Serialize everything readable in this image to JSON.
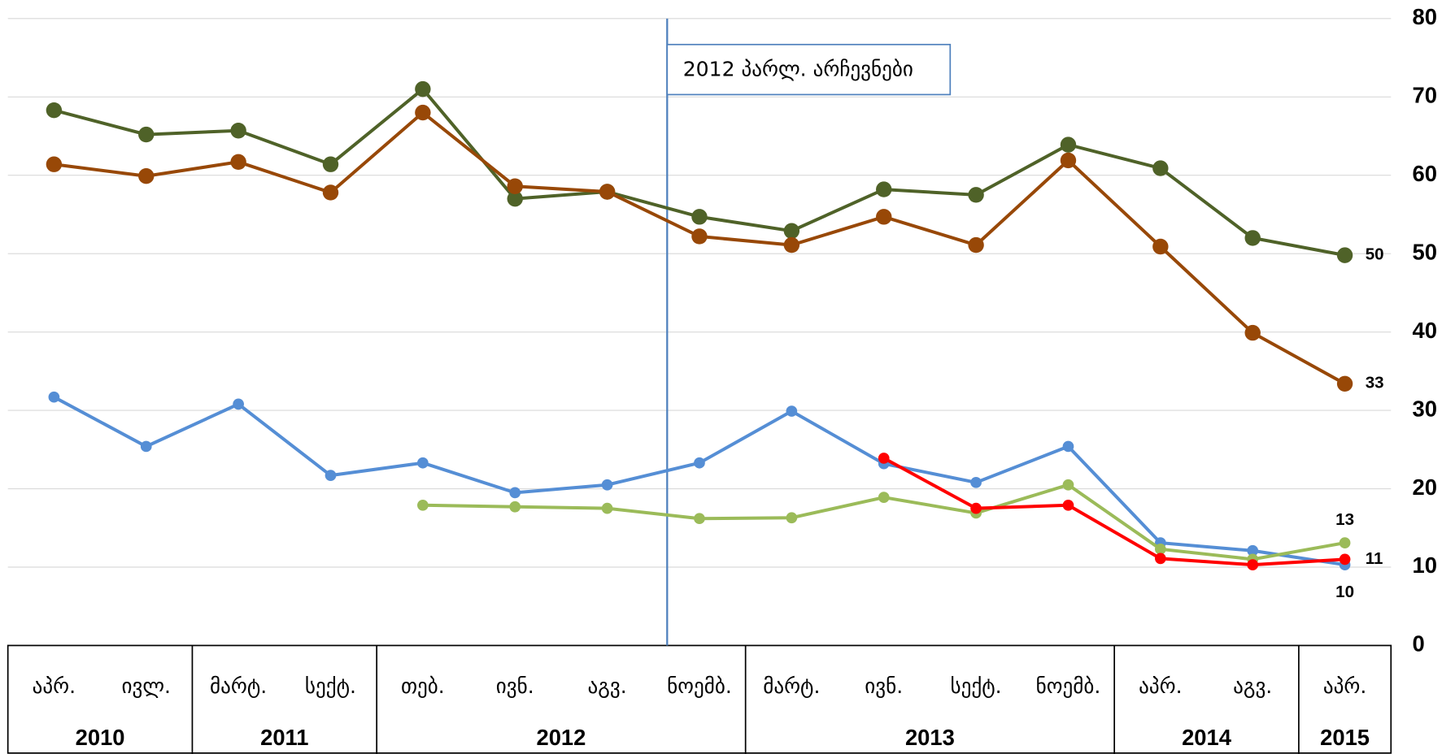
{
  "chart_data": {
    "type": "line",
    "annotation": "2012 პარლ. არჩევნები",
    "categories": [
      "აპრ.",
      "ივლ.",
      "მარტ.",
      "სექტ.",
      "თებ.",
      "ივნ.",
      "აგვ.",
      "ნოემბ.",
      "მარტ.",
      "ივნ.",
      "სექტ.",
      "ნოემბ.",
      "აპრ.",
      "აგვ.",
      "აპრ."
    ],
    "year_groups": [
      {
        "label": "2010",
        "count": 2
      },
      {
        "label": "2011",
        "count": 2
      },
      {
        "label": "2012",
        "count": 4
      },
      {
        "label": "2013",
        "count": 4
      },
      {
        "label": "2014",
        "count": 2
      },
      {
        "label": "2015",
        "count": 1
      }
    ],
    "series": [
      {
        "color": "#4f6228",
        "marker": "large",
        "values": [
          68.3,
          65.2,
          65.7,
          61.4,
          71.0,
          57.0,
          57.9,
          54.7,
          52.9,
          58.2,
          57.5,
          63.9,
          60.9,
          52.0,
          49.8
        ],
        "value_labels": [
          null,
          null,
          null,
          null,
          null,
          null,
          null,
          null,
          null,
          null,
          null,
          null,
          null,
          null,
          "50"
        ]
      },
      {
        "color": "#984807",
        "marker": "large",
        "values": [
          61.4,
          59.9,
          61.7,
          57.8,
          68.0,
          58.6,
          57.9,
          52.2,
          51.1,
          54.7,
          51.1,
          61.9,
          50.9,
          39.9,
          33.4
        ],
        "value_labels": [
          null,
          null,
          null,
          null,
          null,
          null,
          null,
          null,
          null,
          null,
          null,
          null,
          null,
          null,
          "33"
        ]
      },
      {
        "color": "#558ed5",
        "marker": "small",
        "values": [
          31.7,
          25.4,
          30.8,
          21.7,
          23.3,
          19.5,
          20.5,
          23.3,
          29.9,
          23.2,
          20.8,
          25.4,
          13.1,
          12.1,
          10.3
        ],
        "value_labels": [
          null,
          null,
          null,
          null,
          null,
          null,
          null,
          null,
          null,
          null,
          null,
          null,
          null,
          null,
          "10"
        ]
      },
      {
        "color": "#9bbb59",
        "marker": "small",
        "values": [
          null,
          null,
          null,
          null,
          17.9,
          17.7,
          17.5,
          16.2,
          16.3,
          18.9,
          16.9,
          20.5,
          12.3,
          11.0,
          13.1
        ],
        "value_labels": [
          null,
          null,
          null,
          null,
          null,
          null,
          null,
          null,
          null,
          null,
          null,
          null,
          null,
          null,
          "13"
        ]
      },
      {
        "color": "#ff0000",
        "marker": "small",
        "values": [
          null,
          null,
          null,
          null,
          null,
          null,
          null,
          null,
          null,
          23.9,
          17.5,
          17.9,
          11.1,
          10.3,
          11.0
        ],
        "value_labels": [
          null,
          null,
          null,
          null,
          null,
          null,
          null,
          null,
          null,
          null,
          null,
          null,
          null,
          null,
          "11"
        ]
      }
    ],
    "ylim": [
      0,
      80
    ],
    "yticks": [
      0,
      10,
      20,
      30,
      40,
      50,
      60,
      70,
      80
    ],
    "grid": true
  }
}
